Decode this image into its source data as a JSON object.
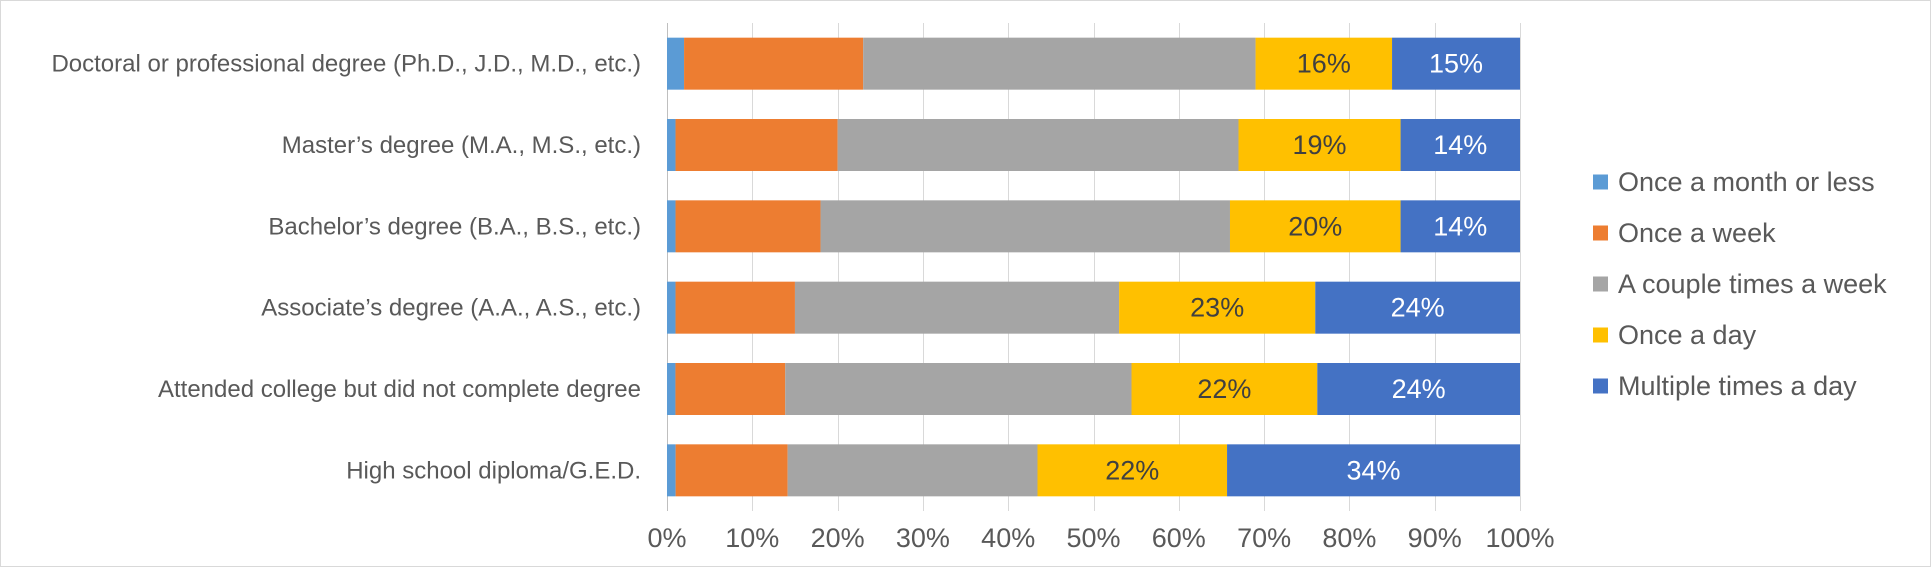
{
  "chart_data": {
    "type": "bar",
    "orientation": "horizontal",
    "stacked": "percent",
    "categories": [
      "Doctoral or professional degree (Ph.D., J.D., M.D., etc.)",
      "Master’s degree (M.A., M.S., etc.)",
      "Bachelor’s degree (B.A., B.S., etc.)",
      "Associate’s degree (A.A., A.S., etc.)",
      "Attended college but did not complete degree",
      "High school diploma/G.E.D."
    ],
    "series": [
      {
        "name": "Once a month or less",
        "color": "#5b9bd5",
        "values": [
          2,
          1,
          1,
          1,
          1,
          1
        ],
        "labels": [
          "",
          "",
          "",
          "",
          "",
          ""
        ]
      },
      {
        "name": "Once a week",
        "color": "#ed7d31",
        "values": [
          21,
          19,
          17,
          14,
          13,
          13
        ],
        "labels": [
          "",
          "",
          "",
          "",
          "",
          ""
        ]
      },
      {
        "name": "A couple times a week",
        "color": "#a5a5a5",
        "values": [
          46,
          47,
          48,
          38,
          41,
          29
        ],
        "labels": [
          "",
          "",
          "",
          "",
          "",
          ""
        ]
      },
      {
        "name": "Once a day",
        "color": "#ffc000",
        "values": [
          16,
          19,
          20,
          23,
          22,
          22
        ],
        "labels": [
          "16%",
          "19%",
          "20%",
          "23%",
          "22%",
          "22%"
        ]
      },
      {
        "name": "Multiple times a day",
        "color": "#4472c4",
        "values": [
          15,
          14,
          14,
          24,
          24,
          34
        ],
        "labels": [
          "15%",
          "14%",
          "14%",
          "24%",
          "24%",
          "34%"
        ]
      }
    ],
    "x_ticks": [
      "0%",
      "10%",
      "20%",
      "30%",
      "40%",
      "50%",
      "60%",
      "70%",
      "80%",
      "90%",
      "100%"
    ],
    "xlim": [
      0,
      100
    ],
    "grid": true,
    "legend_position": "right",
    "title": "",
    "xlabel": "",
    "ylabel": ""
  }
}
